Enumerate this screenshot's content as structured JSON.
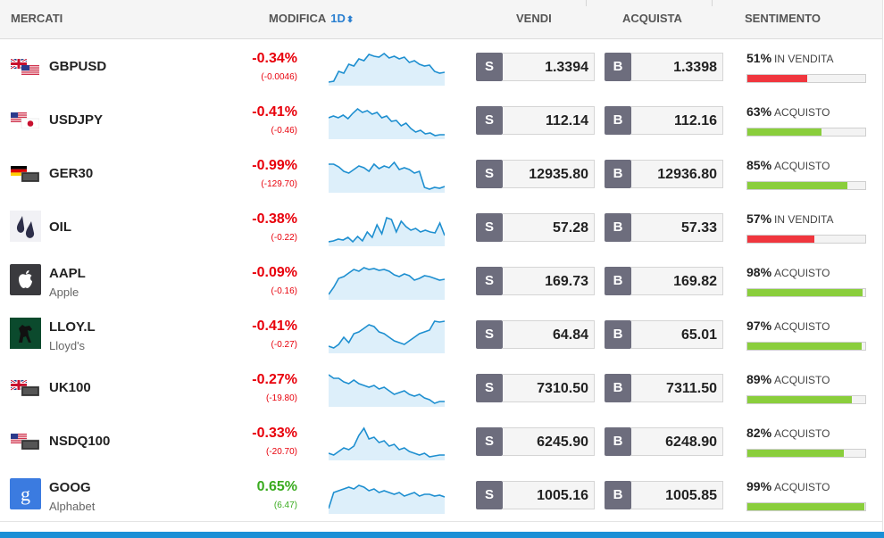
{
  "header": {
    "markets": "MERCATI",
    "change": "MODIFICA",
    "period": "1D",
    "sell": "VENDI",
    "buy": "ACQUISTA",
    "sentiment": "SENTIMENTO"
  },
  "buttons": {
    "sell": "S",
    "buy": "B"
  },
  "colors": {
    "negative": "#e8000b",
    "positive": "#3aab1f",
    "sell_bar": "#f0363e",
    "buy_bar": "#8ace3c",
    "spark_line": "#1e8fd0",
    "spark_fill": "#ddeffa",
    "footer": "#1a8fd6"
  },
  "rows": [
    {
      "symbol": "GBPUSD",
      "name": "",
      "icon": "flag-gb-us-icon",
      "change_pct": "-0.34%",
      "change_abs": "(-0.0046)",
      "direction": "neg",
      "sell": "1.3394",
      "buy": "1.3398",
      "sent_pct": "51%",
      "sent_label": "IN VENDITA",
      "sent_type": "sell",
      "sent_value": 51,
      "spark": [
        2,
        3,
        14,
        12,
        22,
        20,
        28,
        26,
        33,
        31,
        30,
        34,
        29,
        31,
        28,
        30,
        24,
        26,
        22,
        20,
        21,
        14,
        12,
        13
      ]
    },
    {
      "symbol": "USDJPY",
      "name": "",
      "icon": "flag-us-jp-icon",
      "change_pct": "-0.41%",
      "change_abs": "(-0.46)",
      "direction": "neg",
      "sell": "112.14",
      "buy": "112.16",
      "sent_pct": "63%",
      "sent_label": "ACQUISTO",
      "sent_type": "buy",
      "sent_value": 63,
      "spark": [
        22,
        24,
        22,
        25,
        21,
        27,
        32,
        28,
        30,
        26,
        28,
        22,
        24,
        18,
        19,
        13,
        16,
        10,
        6,
        8,
        4,
        5,
        2,
        3,
        3
      ]
    },
    {
      "symbol": "GER30",
      "name": "",
      "icon": "flag-de-icon",
      "change_pct": "-0.99%",
      "change_abs": "(-129.70)",
      "direction": "neg",
      "sell": "12935.80",
      "buy": "12936.80",
      "sent_pct": "85%",
      "sent_label": "ACQUISTO",
      "sent_type": "buy",
      "sent_value": 85,
      "spark": [
        30,
        30,
        27,
        22,
        20,
        24,
        28,
        26,
        22,
        30,
        25,
        28,
        26,
        32,
        24,
        26,
        24,
        20,
        22,
        4,
        2,
        4,
        3,
        5
      ]
    },
    {
      "symbol": "OIL",
      "name": "",
      "icon": "oil-drop-icon",
      "change_pct": "-0.38%",
      "change_abs": "(-0.22)",
      "direction": "neg",
      "sell": "57.28",
      "buy": "57.33",
      "sent_pct": "57%",
      "sent_label": "IN VENDITA",
      "sent_type": "sell",
      "sent_value": 57,
      "spark": [
        3,
        4,
        6,
        5,
        8,
        3,
        9,
        4,
        14,
        8,
        22,
        12,
        30,
        28,
        14,
        26,
        20,
        16,
        18,
        14,
        16,
        14,
        13,
        24,
        10
      ]
    },
    {
      "symbol": "AAPL",
      "name": "Apple",
      "icon": "apple-icon",
      "change_pct": "-0.09%",
      "change_abs": "(-0.16)",
      "direction": "neg",
      "sell": "169.73",
      "buy": "169.82",
      "sent_pct": "98%",
      "sent_label": "ACQUISTO",
      "sent_type": "buy",
      "sent_value": 98,
      "spark": [
        4,
        12,
        22,
        24,
        28,
        32,
        30,
        34,
        32,
        33,
        31,
        32,
        30,
        26,
        24,
        27,
        25,
        20,
        22,
        25,
        24,
        22,
        20,
        21
      ]
    },
    {
      "symbol": "LLOY.L",
      "name": "Lloyd's",
      "icon": "lloyds-horse-icon",
      "change_pct": "-0.41%",
      "change_abs": "(-0.27)",
      "direction": "neg",
      "sell": "64.84",
      "buy": "65.01",
      "sent_pct": "97%",
      "sent_label": "ACQUISTO",
      "sent_type": "buy",
      "sent_value": 97,
      "spark": [
        6,
        4,
        8,
        16,
        10,
        20,
        22,
        26,
        30,
        28,
        22,
        20,
        16,
        12,
        10,
        8,
        12,
        16,
        20,
        22,
        24,
        34,
        33,
        34
      ]
    },
    {
      "symbol": "UK100",
      "name": "",
      "icon": "flag-gb-icon",
      "change_pct": "-0.27%",
      "change_abs": "(-19.80)",
      "direction": "neg",
      "sell": "7310.50",
      "buy": "7311.50",
      "sent_pct": "89%",
      "sent_label": "ACQUISTO",
      "sent_type": "buy",
      "sent_value": 89,
      "spark": [
        34,
        30,
        30,
        26,
        24,
        28,
        24,
        22,
        20,
        22,
        18,
        20,
        16,
        12,
        14,
        16,
        12,
        10,
        12,
        8,
        6,
        2,
        4,
        4
      ]
    },
    {
      "symbol": "NSDQ100",
      "name": "",
      "icon": "flag-us-icon",
      "change_pct": "-0.33%",
      "change_abs": "(-20.70)",
      "direction": "neg",
      "sell": "6245.90",
      "buy": "6248.90",
      "sent_pct": "82%",
      "sent_label": "ACQUISTO",
      "sent_type": "buy",
      "sent_value": 82,
      "spark": [
        6,
        4,
        8,
        12,
        10,
        14,
        26,
        34,
        22,
        24,
        18,
        20,
        14,
        16,
        10,
        12,
        8,
        6,
        4,
        6,
        2,
        3,
        4,
        4
      ]
    },
    {
      "symbol": "GOOG",
      "name": "Alphabet",
      "icon": "google-icon",
      "change_pct": "0.65%",
      "change_abs": "(6.47)",
      "direction": "pos",
      "sell": "1005.16",
      "buy": "1005.85",
      "sent_pct": "99%",
      "sent_label": "ACQUISTO",
      "sent_type": "buy",
      "sent_value": 99,
      "spark": [
        4,
        22,
        24,
        26,
        28,
        26,
        30,
        28,
        24,
        26,
        22,
        24,
        22,
        20,
        22,
        18,
        20,
        22,
        18,
        20,
        20,
        18,
        19,
        17
      ]
    }
  ]
}
